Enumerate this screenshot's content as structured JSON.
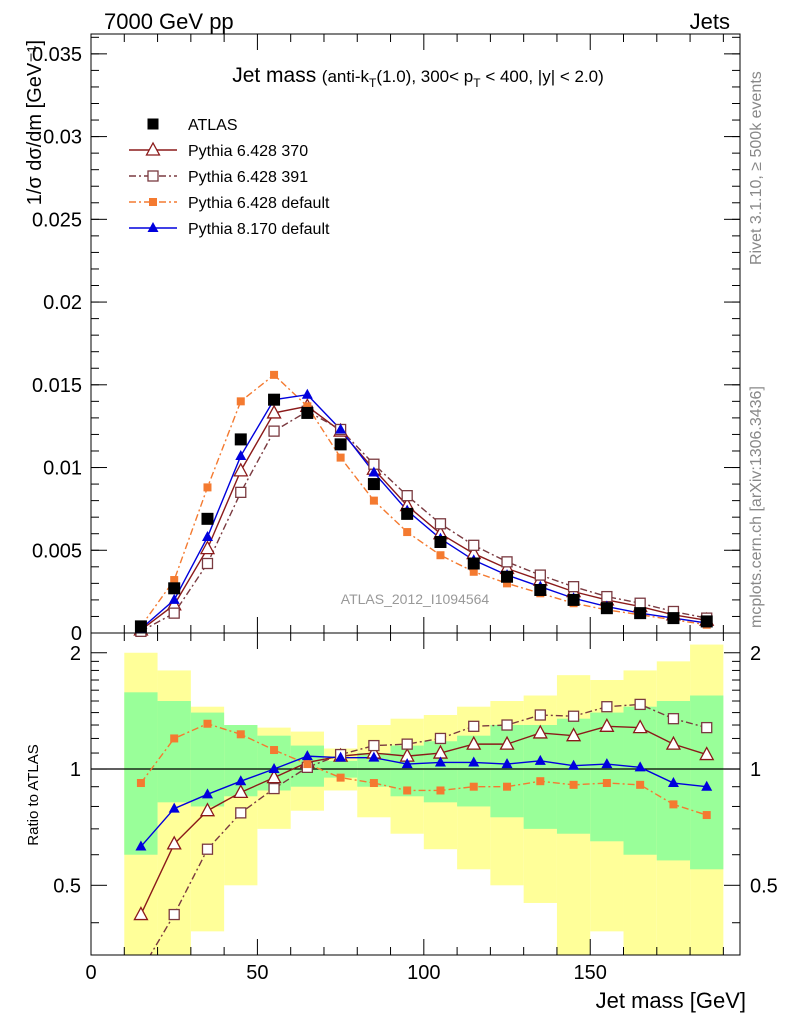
{
  "header": {
    "left": "7000 GeV pp",
    "right": "Jets"
  },
  "side_labels": {
    "rivet": "Rivet 3.1.10, ≥ 500k events",
    "mcplots": "mcplots.cern.ch [arXiv:1306.3436]"
  },
  "chart_data": {
    "type": "scatter",
    "title": {
      "main": "Jet mass",
      "detail_a": "(anti-k",
      "detail_a_sub": "T",
      "detail_b": "(1.0), 300< p",
      "detail_b_sub": "T",
      "detail_c": " < 400, |y| < 2.0)"
    },
    "watermark": "ATLAS_2012_I1094564",
    "xlabel": "Jet mass [GeV]",
    "ylabel_top": "1/σ dσ/dm [GeV⁻¹]",
    "ylabel_ratio": "Ratio to ATLAS",
    "xlim": [
      0,
      195
    ],
    "ylim_top": [
      0,
      0.0362
    ],
    "ylim_ratio": [
      0.33,
      2.25
    ],
    "x_ticks": [
      0,
      50,
      100,
      150
    ],
    "y_ticks_top": [
      "0",
      "0.005",
      "0.01",
      "0.015",
      "0.02",
      "0.025",
      "0.03",
      "0.035"
    ],
    "y_ticks_ratio": [
      "0.5",
      "1",
      "2"
    ],
    "x": [
      15,
      25,
      35,
      45,
      55,
      65,
      75,
      85,
      95,
      105,
      115,
      125,
      135,
      145,
      155,
      165,
      175,
      185
    ],
    "bins": [
      [
        10,
        20
      ],
      [
        20,
        30
      ],
      [
        30,
        40
      ],
      [
        40,
        50
      ],
      [
        50,
        60
      ],
      [
        60,
        70
      ],
      [
        70,
        80
      ],
      [
        80,
        90
      ],
      [
        90,
        100
      ],
      [
        100,
        110
      ],
      [
        110,
        120
      ],
      [
        120,
        130
      ],
      [
        130,
        140
      ],
      [
        140,
        150
      ],
      [
        150,
        160
      ],
      [
        160,
        170
      ],
      [
        170,
        180
      ],
      [
        180,
        190
      ]
    ],
    "data_series": {
      "name": "ATLAS",
      "values": [
        0.0004,
        0.0027,
        0.0069,
        0.0117,
        0.0141,
        0.0133,
        0.0114,
        0.009,
        0.0072,
        0.0055,
        0.0042,
        0.0034,
        0.0026,
        0.002,
        0.0015,
        0.0012,
        0.0009,
        0.0007
      ]
    },
    "band_inner": [
      [
        0.6,
        1.58
      ],
      [
        0.82,
        1.5
      ],
      [
        0.8,
        1.4
      ],
      [
        0.85,
        1.3
      ],
      [
        0.88,
        1.22
      ],
      [
        0.9,
        1.15
      ],
      [
        0.95,
        1.05
      ],
      [
        0.9,
        1.1
      ],
      [
        0.85,
        1.15
      ],
      [
        0.82,
        1.18
      ],
      [
        0.8,
        1.22
      ],
      [
        0.75,
        1.3
      ],
      [
        0.7,
        1.3
      ],
      [
        0.68,
        1.35
      ],
      [
        0.65,
        1.4
      ],
      [
        0.6,
        1.45
      ],
      [
        0.58,
        1.5
      ],
      [
        0.55,
        1.55
      ]
    ],
    "band_outer": [
      [
        0.33,
        2.0
      ],
      [
        0.33,
        1.8
      ],
      [
        0.38,
        1.45
      ],
      [
        0.5,
        1.3
      ],
      [
        0.7,
        1.28
      ],
      [
        0.78,
        1.25
      ],
      [
        0.88,
        1.13
      ],
      [
        0.75,
        1.3
      ],
      [
        0.68,
        1.35
      ],
      [
        0.62,
        1.38
      ],
      [
        0.55,
        1.45
      ],
      [
        0.5,
        1.5
      ],
      [
        0.45,
        1.55
      ],
      [
        0.33,
        1.75
      ],
      [
        0.38,
        1.7
      ],
      [
        0.33,
        1.8
      ],
      [
        0.33,
        1.9
      ],
      [
        0.33,
        2.1
      ]
    ],
    "series": [
      {
        "name": "Pythia 6.428 370",
        "style": "solid",
        "marker": "triangle-open",
        "color": "#8b1a1a",
        "values": [
          0.00018,
          0.0017,
          0.0051,
          0.0098,
          0.0133,
          0.0137,
          0.0122,
          0.0099,
          0.0077,
          0.006,
          0.0048,
          0.0039,
          0.0032,
          0.0025,
          0.002,
          0.0016,
          0.0011,
          0.00077
        ],
        "ratio": [
          0.42,
          0.64,
          0.78,
          0.87,
          0.95,
          1.04,
          1.08,
          1.1,
          1.08,
          1.1,
          1.16,
          1.16,
          1.24,
          1.22,
          1.29,
          1.28,
          1.16,
          1.09
        ]
      },
      {
        "name": "Pythia 6.428 391",
        "style": "dashdot",
        "marker": "square-open",
        "color": "#7a3a40",
        "values": [
          0.0001,
          0.0012,
          0.0042,
          0.0085,
          0.0122,
          0.0134,
          0.0123,
          0.0102,
          0.0083,
          0.0066,
          0.0053,
          0.0043,
          0.0035,
          0.0028,
          0.0022,
          0.0018,
          0.0013,
          0.0009
        ],
        "ratio": [
          0.3,
          0.42,
          0.62,
          0.77,
          0.89,
          1.01,
          1.09,
          1.15,
          1.16,
          1.2,
          1.29,
          1.3,
          1.38,
          1.37,
          1.45,
          1.47,
          1.35,
          1.28
        ]
      },
      {
        "name": "Pythia 6.428 default",
        "style": "dashdot",
        "marker": "square-filled",
        "color": "#f47a30",
        "values": [
          0.0004,
          0.0032,
          0.0088,
          0.014,
          0.0156,
          0.0137,
          0.0106,
          0.008,
          0.0061,
          0.0047,
          0.0037,
          0.003,
          0.0024,
          0.0018,
          0.0014,
          0.0011,
          0.0008,
          0.0005
        ],
        "ratio": [
          0.92,
          1.2,
          1.31,
          1.23,
          1.12,
          1.03,
          0.95,
          0.92,
          0.88,
          0.88,
          0.9,
          0.9,
          0.93,
          0.91,
          0.92,
          0.91,
          0.81,
          0.76
        ]
      },
      {
        "name": "Pythia 8.170 default",
        "style": "solid",
        "marker": "triangle-filled",
        "color": "#0000dd",
        "values": [
          0.00025,
          0.002,
          0.0058,
          0.0107,
          0.0141,
          0.0144,
          0.0123,
          0.0097,
          0.0074,
          0.0057,
          0.0044,
          0.0035,
          0.0028,
          0.0021,
          0.0016,
          0.0012,
          0.0009,
          0.0006
        ],
        "ratio": [
          0.63,
          0.79,
          0.86,
          0.93,
          1.0,
          1.08,
          1.07,
          1.07,
          1.03,
          1.04,
          1.04,
          1.03,
          1.05,
          1.02,
          1.03,
          1.01,
          0.92,
          0.9
        ]
      }
    ]
  }
}
